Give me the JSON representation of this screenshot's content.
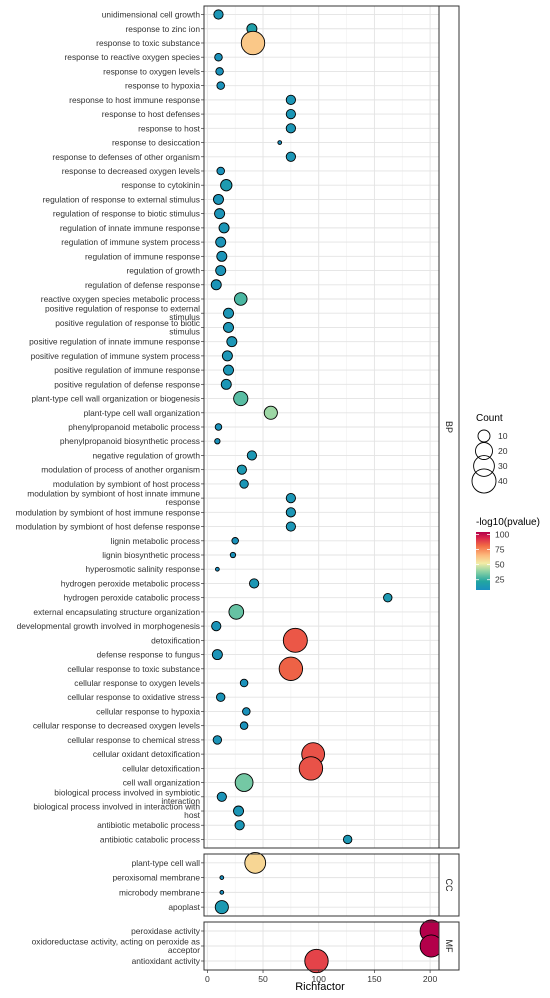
{
  "chart_data": {
    "type": "scatter",
    "title": "",
    "xlabel": "Richfactor",
    "ylabel": "",
    "xlim": [
      -3,
      208
    ],
    "xticks": [
      0,
      50,
      100,
      150,
      200
    ],
    "grid": true,
    "legend_position": "right",
    "size_legend": {
      "title": "Count",
      "values": [
        10,
        20,
        30,
        40
      ]
    },
    "color_legend": {
      "title": "-log10(pvalue)",
      "ticks": [
        25,
        50,
        75,
        100
      ],
      "range": [
        8,
        104
      ],
      "colors": [
        "#1f8fb8",
        "#2aa79b",
        "#8fd1a3",
        "#f7e9a6",
        "#fdb477",
        "#f46d43",
        "#d9254a",
        "#b3004a"
      ]
    },
    "panels": [
      {
        "name": "BP",
        "rows": [
          {
            "term": "unidimensional cell growth",
            "x": 10,
            "count": 6,
            "p": 12
          },
          {
            "term": "response to zinc ion",
            "x": 40,
            "count": 7,
            "p": 18
          },
          {
            "term": "response to toxic substance",
            "x": 41,
            "count": 38,
            "p": 62
          },
          {
            "term": "response to reactive oxygen species",
            "x": 10,
            "count": 4,
            "p": 10
          },
          {
            "term": "response to oxygen levels",
            "x": 11,
            "count": 4,
            "p": 10
          },
          {
            "term": "response to hypoxia",
            "x": 12,
            "count": 4,
            "p": 10
          },
          {
            "term": "response to host immune response",
            "x": 75,
            "count": 6,
            "p": 12
          },
          {
            "term": "response to host defenses",
            "x": 75,
            "count": 6,
            "p": 12
          },
          {
            "term": "response to host",
            "x": 75,
            "count": 6,
            "p": 12
          },
          {
            "term": "response to desiccation",
            "x": 65,
            "count": 1,
            "p": 8
          },
          {
            "term": "response to defenses of other organism",
            "x": 75,
            "count": 6,
            "p": 12
          },
          {
            "term": "response to decreased oxygen levels",
            "x": 12,
            "count": 4,
            "p": 10
          },
          {
            "term": "response to cytokinin",
            "x": 17,
            "count": 9,
            "p": 15
          },
          {
            "term": "regulation of response to external stimulus",
            "x": 10,
            "count": 7,
            "p": 11
          },
          {
            "term": "regulation of response to biotic stimulus",
            "x": 11,
            "count": 7,
            "p": 11
          },
          {
            "term": "regulation of innate immune response",
            "x": 15,
            "count": 7,
            "p": 12
          },
          {
            "term": "regulation of immune system process",
            "x": 12,
            "count": 7,
            "p": 11
          },
          {
            "term": "regulation of immune response",
            "x": 13,
            "count": 7,
            "p": 11
          },
          {
            "term": "regulation of growth",
            "x": 12,
            "count": 7,
            "p": 11
          },
          {
            "term": "regulation of defense response",
            "x": 8,
            "count": 7,
            "p": 11
          },
          {
            "term": "reactive oxygen species metabolic process",
            "x": 30,
            "count": 11,
            "p": 28
          },
          {
            "term": "positive regulation of response to external stimulus",
            "x": 19,
            "count": 7,
            "p": 12
          },
          {
            "term": "positive regulation of response to biotic stimulus",
            "x": 19,
            "count": 7,
            "p": 12
          },
          {
            "term": "positive regulation of innate immune response",
            "x": 22,
            "count": 7,
            "p": 12
          },
          {
            "term": "positive regulation of immune system process",
            "x": 18,
            "count": 7,
            "p": 12
          },
          {
            "term": "positive regulation of immune response",
            "x": 19,
            "count": 7,
            "p": 12
          },
          {
            "term": "positive regulation of defense response",
            "x": 17,
            "count": 7,
            "p": 12
          },
          {
            "term": "plant-type cell wall organization or biogenesis",
            "x": 30,
            "count": 14,
            "p": 30
          },
          {
            "term": "plant-type cell wall organization",
            "x": 57,
            "count": 12,
            "p": 40
          },
          {
            "term": "phenylpropanoid metabolic process",
            "x": 10,
            "count": 3,
            "p": 10
          },
          {
            "term": "phenylpropanoid biosynthetic process",
            "x": 9,
            "count": 2,
            "p": 10
          },
          {
            "term": "negative regulation of growth",
            "x": 40,
            "count": 6,
            "p": 13
          },
          {
            "term": "modulation of process of another organism",
            "x": 31,
            "count": 6,
            "p": 14
          },
          {
            "term": "modulation by symbiont of host process",
            "x": 33,
            "count": 5,
            "p": 12
          },
          {
            "term": "modulation by symbiont of host innate immune response",
            "x": 75,
            "count": 6,
            "p": 12
          },
          {
            "term": "modulation by symbiont of host immune response",
            "x": 75,
            "count": 6,
            "p": 12
          },
          {
            "term": "modulation by symbiont of host defense response",
            "x": 75,
            "count": 6,
            "p": 12
          },
          {
            "term": "lignin metabolic process",
            "x": 25,
            "count": 3,
            "p": 10
          },
          {
            "term": "lignin biosynthetic process",
            "x": 23,
            "count": 2,
            "p": 10
          },
          {
            "term": "hyperosmotic salinity response",
            "x": 9,
            "count": 1,
            "p": 8
          },
          {
            "term": "hydrogen peroxide metabolic process",
            "x": 42,
            "count": 6,
            "p": 13
          },
          {
            "term": "hydrogen peroxide catabolic process",
            "x": 162,
            "count": 5,
            "p": 14
          },
          {
            "term": "external encapsulating structure organization",
            "x": 26,
            "count": 15,
            "p": 32
          },
          {
            "term": "developmental growth involved in morphogenesis",
            "x": 8,
            "count": 6,
            "p": 11
          },
          {
            "term": "detoxification",
            "x": 79,
            "count": 40,
            "p": 84
          },
          {
            "term": "defense response to fungus",
            "x": 9,
            "count": 7,
            "p": 11
          },
          {
            "term": "cellular response to toxic substance",
            "x": 75,
            "count": 38,
            "p": 82
          },
          {
            "term": "cellular response to oxygen levels",
            "x": 33,
            "count": 4,
            "p": 10
          },
          {
            "term": "cellular response to oxidative stress",
            "x": 12,
            "count": 5,
            "p": 11
          },
          {
            "term": "cellular response to hypoxia",
            "x": 35,
            "count": 4,
            "p": 10
          },
          {
            "term": "cellular response to decreased oxygen levels",
            "x": 33,
            "count": 4,
            "p": 10
          },
          {
            "term": "cellular response to chemical stress",
            "x": 9,
            "count": 5,
            "p": 11
          },
          {
            "term": "cellular oxidant detoxification",
            "x": 95,
            "count": 36,
            "p": 85
          },
          {
            "term": "cellular detoxification",
            "x": 93,
            "count": 38,
            "p": 85
          },
          {
            "term": "cell wall organization",
            "x": 33,
            "count": 22,
            "p": 34
          },
          {
            "term": "biological process involved in symbiotic interaction",
            "x": 13,
            "count": 6,
            "p": 11
          },
          {
            "term": "biological process involved in interaction with host",
            "x": 28,
            "count": 7,
            "p": 12
          },
          {
            "term": "antibiotic metabolic process",
            "x": 29,
            "count": 6,
            "p": 12
          },
          {
            "term": "antibiotic catabolic process",
            "x": 126,
            "count": 5,
            "p": 13
          }
        ]
      },
      {
        "name": "CC",
        "rows": [
          {
            "term": "plant-type cell wall",
            "x": 43,
            "count": 30,
            "p": 58
          },
          {
            "term": "peroxisomal membrane",
            "x": 13,
            "count": 1,
            "p": 8
          },
          {
            "term": "microbody membrane",
            "x": 13,
            "count": 1,
            "p": 8
          },
          {
            "term": "apoplast",
            "x": 13,
            "count": 12,
            "p": 14
          }
        ]
      },
      {
        "name": "MF",
        "rows": [
          {
            "term": "peroxidase activity",
            "x": 201,
            "count": 34,
            "p": 104
          },
          {
            "term": "oxidoreductase activity, acting on peroxide as acceptor",
            "x": 201,
            "count": 34,
            "p": 104
          },
          {
            "term": "antioxidant activity",
            "x": 98,
            "count": 38,
            "p": 88
          }
        ]
      }
    ]
  }
}
